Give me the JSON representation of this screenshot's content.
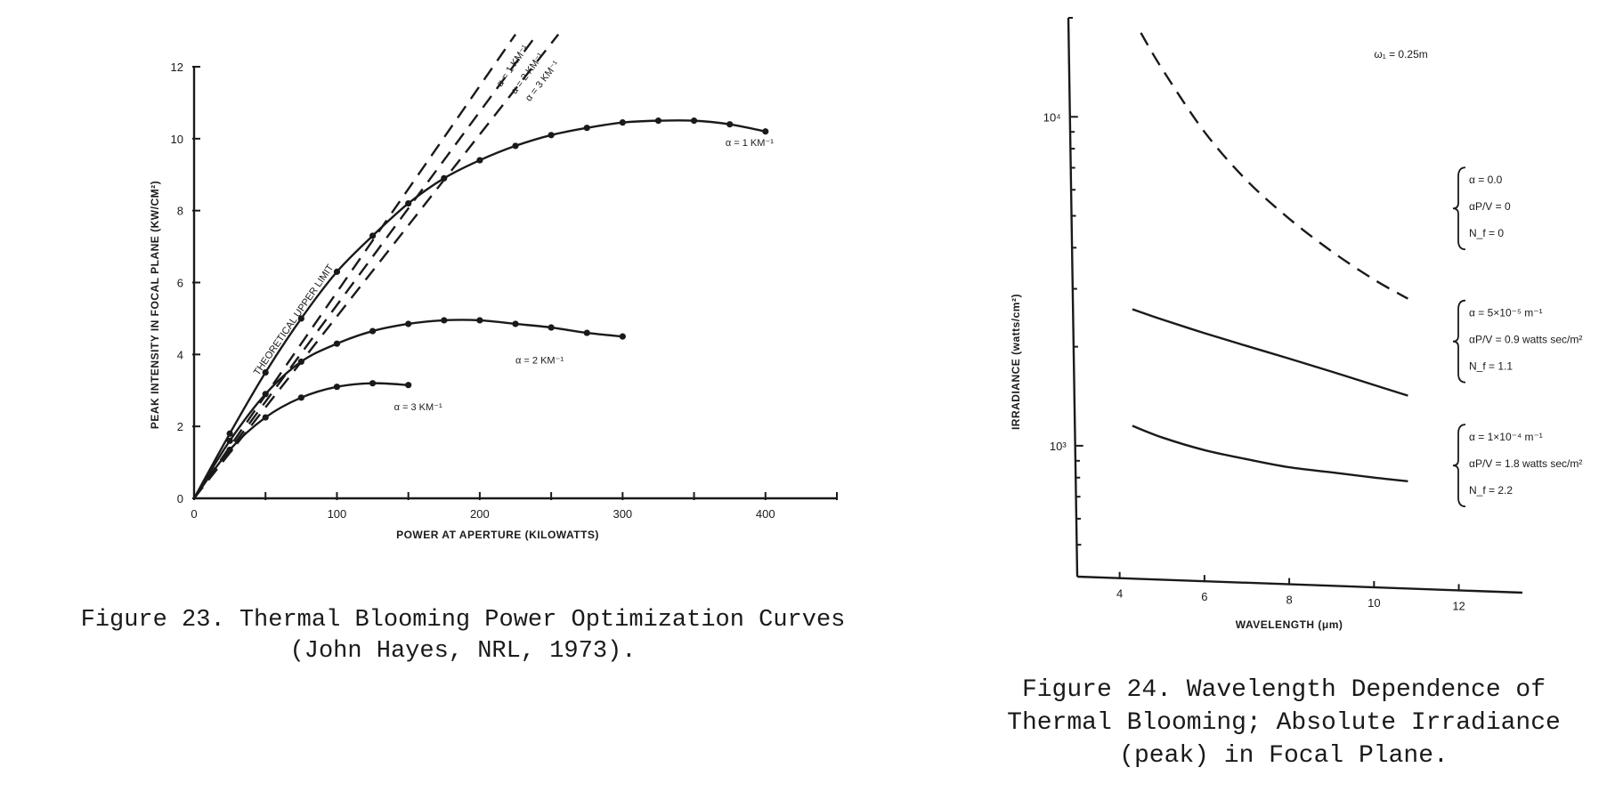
{
  "chart_data": [
    {
      "type": "line",
      "title": "",
      "xlabel": "POWER AT APERTURE (KILOWATTS)",
      "ylabel": "PEAK INTENSITY IN FOCAL PLANE (KW/CM²)",
      "xlim": [
        0,
        450
      ],
      "ylim": [
        0,
        12
      ],
      "x_ticks": [
        0,
        100,
        200,
        300,
        400
      ],
      "y_ticks": [
        0,
        2,
        4,
        6,
        8,
        10,
        12
      ],
      "y_tick_labels": [
        "0",
        "2",
        "4",
        "6",
        "8",
        "10",
        "12"
      ],
      "grid": false,
      "upper_limit_label": "THEORETICAL UPPER LIMIT",
      "series": [
        {
          "name": "α = 1 KM⁻¹",
          "style": "solid-markers",
          "x": [
            0,
            25,
            50,
            75,
            100,
            125,
            150,
            175,
            200,
            225,
            250,
            275,
            300,
            325,
            350,
            375,
            400
          ],
          "y": [
            0,
            1.8,
            3.5,
            5.0,
            6.3,
            7.3,
            8.2,
            8.9,
            9.4,
            9.8,
            10.1,
            10.3,
            10.45,
            10.5,
            10.5,
            10.4,
            10.2
          ]
        },
        {
          "name": "α = 2 KM⁻¹",
          "style": "solid-markers",
          "x": [
            0,
            25,
            50,
            75,
            100,
            125,
            150,
            175,
            200,
            225,
            250,
            275,
            300
          ],
          "y": [
            0,
            1.6,
            2.9,
            3.8,
            4.3,
            4.65,
            4.85,
            4.95,
            4.95,
            4.85,
            4.75,
            4.6,
            4.5
          ]
        },
        {
          "name": "α = 3 KM⁻¹",
          "style": "solid-markers",
          "x": [
            0,
            25,
            50,
            75,
            100,
            125,
            150
          ],
          "y": [
            0,
            1.35,
            2.25,
            2.8,
            3.1,
            3.2,
            3.15
          ]
        },
        {
          "name": "α = 1 KM⁻¹",
          "style": "dashed",
          "x": [
            0,
            225
          ],
          "y": [
            0,
            12.9
          ]
        },
        {
          "name": "α = 2 KM⁻¹",
          "style": "dashed",
          "x": [
            0,
            240
          ],
          "y": [
            0,
            12.9
          ]
        },
        {
          "name": "α = 3 KM⁻¹",
          "style": "dashed",
          "x": [
            0,
            255
          ],
          "y": [
            0,
            12.9
          ]
        }
      ]
    },
    {
      "type": "line",
      "title": "",
      "xlabel": "WAVELENGTH (μm)",
      "ylabel": "IRRADIANCE (watts/cm²)",
      "xscale": "linear",
      "yscale": "log",
      "xlim": [
        3,
        13.5
      ],
      "ylim": [
        400,
        20000
      ],
      "x_ticks": [
        4,
        6,
        8,
        10,
        12
      ],
      "y_ticks": [
        1000,
        10000
      ],
      "y_tick_labels": [
        "10³",
        "10⁴"
      ],
      "grid": false,
      "beam_radius": "ω₁ = 0.25m",
      "series": [
        {
          "style": "dashed",
          "params": [
            "α = 0.0",
            "αP/V = 0",
            "N_f = 0"
          ],
          "x": [
            4.5,
            5,
            6,
            7,
            8,
            9,
            10,
            10.8
          ],
          "y": [
            18000,
            14000,
            9000,
            6400,
            4900,
            3900,
            3200,
            2800
          ]
        },
        {
          "style": "solid",
          "params": [
            "α = 5×10⁻⁵ m⁻¹",
            "αP/V = 0.9 watts sec/m²",
            "N_f = 1.1"
          ],
          "x": [
            4.3,
            5,
            6,
            7,
            8,
            9,
            10,
            10.8
          ],
          "y": [
            2600,
            2420,
            2200,
            2010,
            1840,
            1680,
            1530,
            1420
          ]
        },
        {
          "style": "solid",
          "params": [
            "α = 1×10⁻⁴ m⁻¹",
            "αP/V = 1.8 watts sec/m²",
            "N_f = 2.2"
          ],
          "x": [
            4.3,
            5,
            6,
            7,
            8,
            9,
            10,
            10.8
          ],
          "y": [
            1150,
            1060,
            970,
            910,
            860,
            830,
            800,
            780
          ]
        }
      ]
    }
  ],
  "captions": {
    "fig23": "Figure 23.  Thermal Blooming Power Optimization Curves\n(John Hayes, NRL, 1973).",
    "fig24": "Figure 24.  Wavelength Dependence of\nThermal Blooming;  Absolute Irradiance\n(peak) in Focal Plane."
  }
}
